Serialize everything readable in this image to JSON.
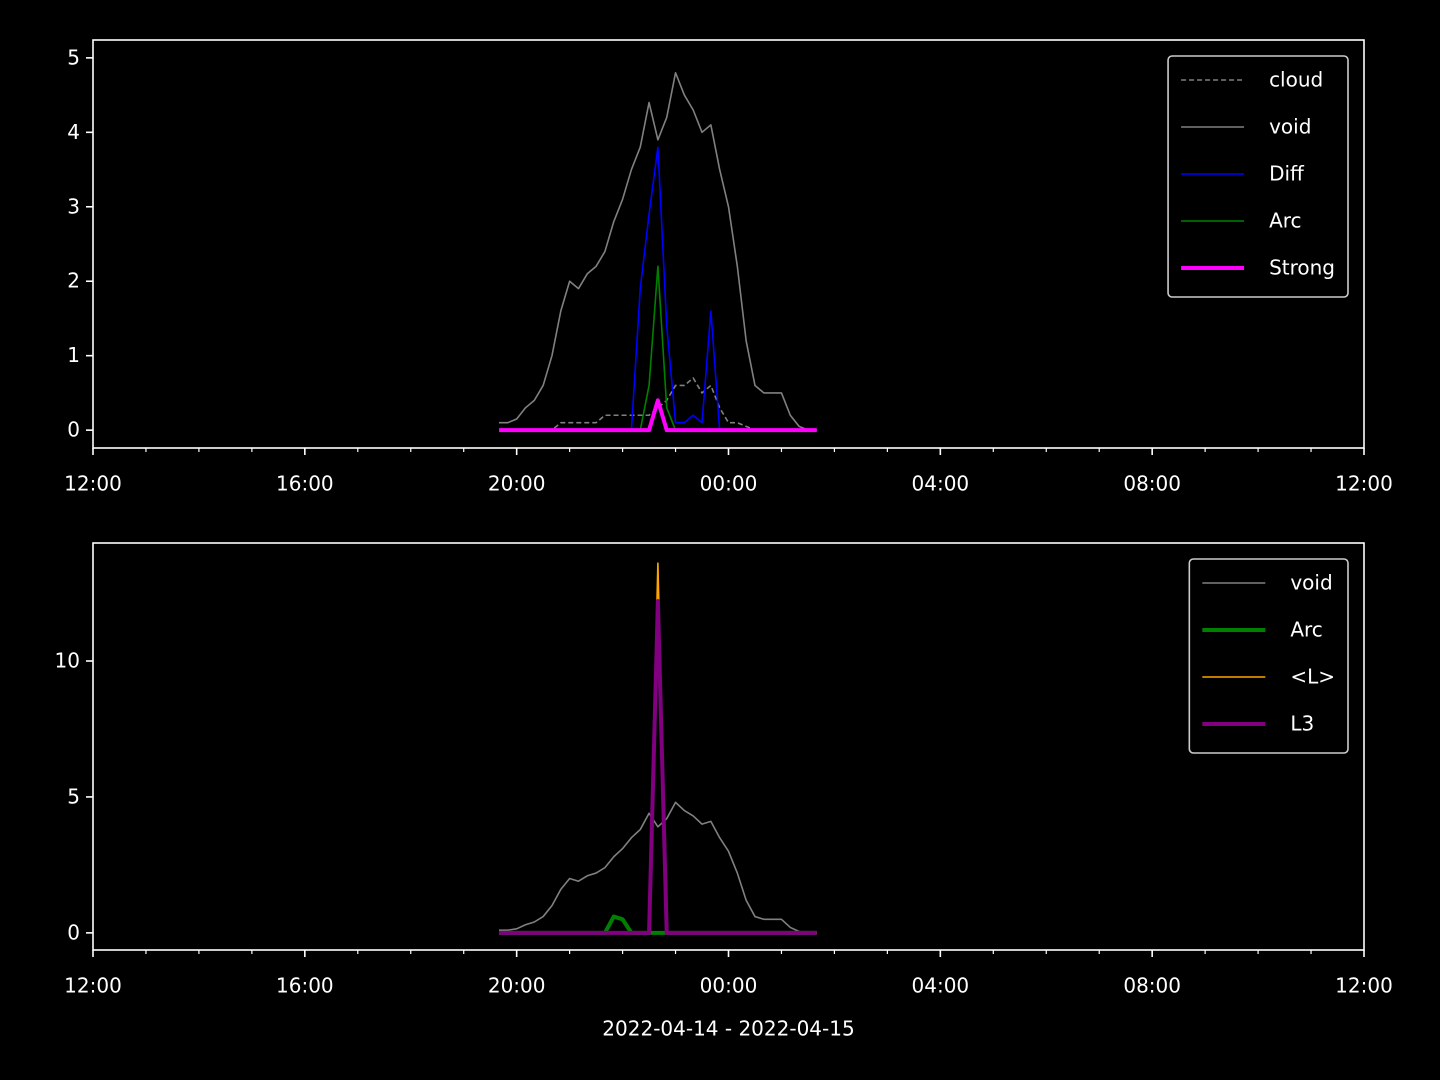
{
  "chart_data": [
    {
      "type": "line",
      "x": [
        460,
        470,
        480,
        490,
        500,
        510,
        520,
        530,
        540,
        550,
        560,
        570,
        580,
        590,
        600,
        610,
        620,
        630,
        640,
        650,
        660,
        670,
        680,
        690,
        700,
        710,
        720,
        730,
        740,
        750,
        760,
        770,
        780,
        790,
        800,
        810,
        820
      ],
      "xlim": [
        0,
        1440
      ],
      "xticks": [
        {
          "value": 0,
          "label": "12:00"
        },
        {
          "value": 240,
          "label": "16:00"
        },
        {
          "value": 480,
          "label": "20:00"
        },
        {
          "value": 720,
          "label": "00:00"
        },
        {
          "value": 960,
          "label": "04:00"
        },
        {
          "value": 1200,
          "label": "08:00"
        },
        {
          "value": 1440,
          "label": "12:00"
        }
      ],
      "ylim": [
        -0.24,
        5.24
      ],
      "yticks": [
        0,
        1,
        2,
        3,
        4,
        5
      ],
      "legend": "upper right",
      "series": [
        {
          "name": "cloud",
          "color": "#808080",
          "linestyle": "dashed",
          "values": [
            0,
            0,
            0,
            0,
            0,
            0,
            0,
            0.1,
            0.1,
            0.1,
            0.1,
            0.1,
            0.2,
            0.2,
            0.2,
            0.2,
            0.2,
            0.2,
            0.3,
            0.4,
            0.6,
            0.6,
            0.7,
            0.5,
            0.6,
            0.3,
            0.1,
            0.1,
            0.05,
            0,
            0,
            0,
            0,
            0,
            0,
            0,
            0
          ]
        },
        {
          "name": "void",
          "color": "#808080",
          "values": [
            0.1,
            0.1,
            0.15,
            0.3,
            0.4,
            0.6,
            1.0,
            1.6,
            2.0,
            1.9,
            2.1,
            2.2,
            2.4,
            2.8,
            3.1,
            3.5,
            3.8,
            4.4,
            3.9,
            4.2,
            4.8,
            4.5,
            4.3,
            4.0,
            4.1,
            3.5,
            3.0,
            2.2,
            1.2,
            0.6,
            0.5,
            0.5,
            0.5,
            0.2,
            0.05,
            0,
            0
          ]
        },
        {
          "name": "Diff",
          "color": "#0000ff",
          "values": [
            0,
            0,
            0,
            0,
            0,
            0,
            0,
            0,
            0,
            0,
            0,
            0,
            0,
            0,
            0,
            0,
            1.9,
            2.9,
            3.8,
            1.4,
            0.1,
            0.1,
            0.2,
            0.1,
            1.6,
            0,
            0,
            0,
            0,
            0,
            0,
            0,
            0,
            0,
            0,
            0,
            0
          ]
        },
        {
          "name": "Arc",
          "color": "#008000",
          "values": [
            0,
            0,
            0,
            0,
            0,
            0,
            0,
            0,
            0,
            0,
            0,
            0,
            0,
            0,
            0,
            0,
            0,
            0.6,
            2.2,
            0.3,
            0,
            0,
            0,
            0,
            0,
            0,
            0,
            0,
            0,
            0,
            0,
            0,
            0,
            0,
            0,
            0,
            0
          ]
        },
        {
          "name": "Strong",
          "color": "#ff00ff",
          "bold": true,
          "values": [
            0,
            0,
            0,
            0,
            0,
            0,
            0,
            0,
            0,
            0,
            0,
            0,
            0,
            0,
            0,
            0,
            0,
            0,
            0.4,
            0,
            0,
            0,
            0,
            0,
            0,
            0,
            0,
            0,
            0,
            0,
            0,
            0,
            0,
            0,
            0,
            0,
            0
          ]
        }
      ]
    },
    {
      "type": "line",
      "x": [
        460,
        470,
        480,
        490,
        500,
        510,
        520,
        530,
        540,
        550,
        560,
        570,
        580,
        590,
        600,
        610,
        620,
        630,
        640,
        650,
        660,
        670,
        680,
        690,
        700,
        710,
        720,
        730,
        740,
        750,
        760,
        770,
        780,
        790,
        800,
        810,
        820
      ],
      "xlim": [
        0,
        1440
      ],
      "xticks": [
        {
          "value": 0,
          "label": "12:00"
        },
        {
          "value": 240,
          "label": "16:00"
        },
        {
          "value": 480,
          "label": "20:00"
        },
        {
          "value": 720,
          "label": "00:00"
        },
        {
          "value": 960,
          "label": "04:00"
        },
        {
          "value": 1200,
          "label": "08:00"
        },
        {
          "value": 1440,
          "label": "12:00"
        }
      ],
      "ylim": [
        -0.63,
        14.34
      ],
      "yticks": [
        0,
        5,
        10
      ],
      "xlabel": "2022-04-14 - 2022-04-15",
      "legend": "upper right",
      "series": [
        {
          "name": "void",
          "color": "#808080",
          "values": [
            0.1,
            0.1,
            0.15,
            0.3,
            0.4,
            0.6,
            1.0,
            1.6,
            2.0,
            1.9,
            2.1,
            2.2,
            2.4,
            2.8,
            3.1,
            3.5,
            3.8,
            4.4,
            3.9,
            4.2,
            4.8,
            4.5,
            4.3,
            4.0,
            4.1,
            3.5,
            3.0,
            2.2,
            1.2,
            0.6,
            0.5,
            0.5,
            0.5,
            0.2,
            0.05,
            0,
            0
          ]
        },
        {
          "name": "Arc",
          "color": "#008000",
          "bold": true,
          "values": [
            0,
            0,
            0,
            0,
            0,
            0,
            0,
            0,
            0,
            0,
            0,
            0,
            0,
            0.6,
            0.5,
            0,
            0,
            0,
            0,
            0,
            0,
            0,
            0,
            0,
            0,
            0,
            0,
            0,
            0,
            0,
            0,
            0,
            0,
            0,
            0,
            0,
            0
          ]
        },
        {
          "name": "<L>",
          "color": "#ffa500",
          "values": [
            0,
            0,
            0,
            0,
            0,
            0,
            0,
            0,
            0,
            0,
            0,
            0,
            0,
            0,
            0,
            0,
            0,
            0,
            13.6,
            0,
            0,
            0,
            0,
            0,
            0,
            0,
            0,
            0,
            0,
            0,
            0,
            0,
            0,
            0,
            0,
            0,
            0
          ]
        },
        {
          "name": "L3",
          "color": "#800080",
          "bold": true,
          "values": [
            0,
            0,
            0,
            0,
            0,
            0,
            0,
            0,
            0,
            0,
            0,
            0,
            0,
            0,
            0,
            0,
            0,
            0,
            12.2,
            0,
            0,
            0,
            0,
            0,
            0,
            0,
            0,
            0,
            0,
            0,
            0,
            0,
            0,
            0,
            0,
            0,
            0
          ]
        }
      ]
    }
  ]
}
